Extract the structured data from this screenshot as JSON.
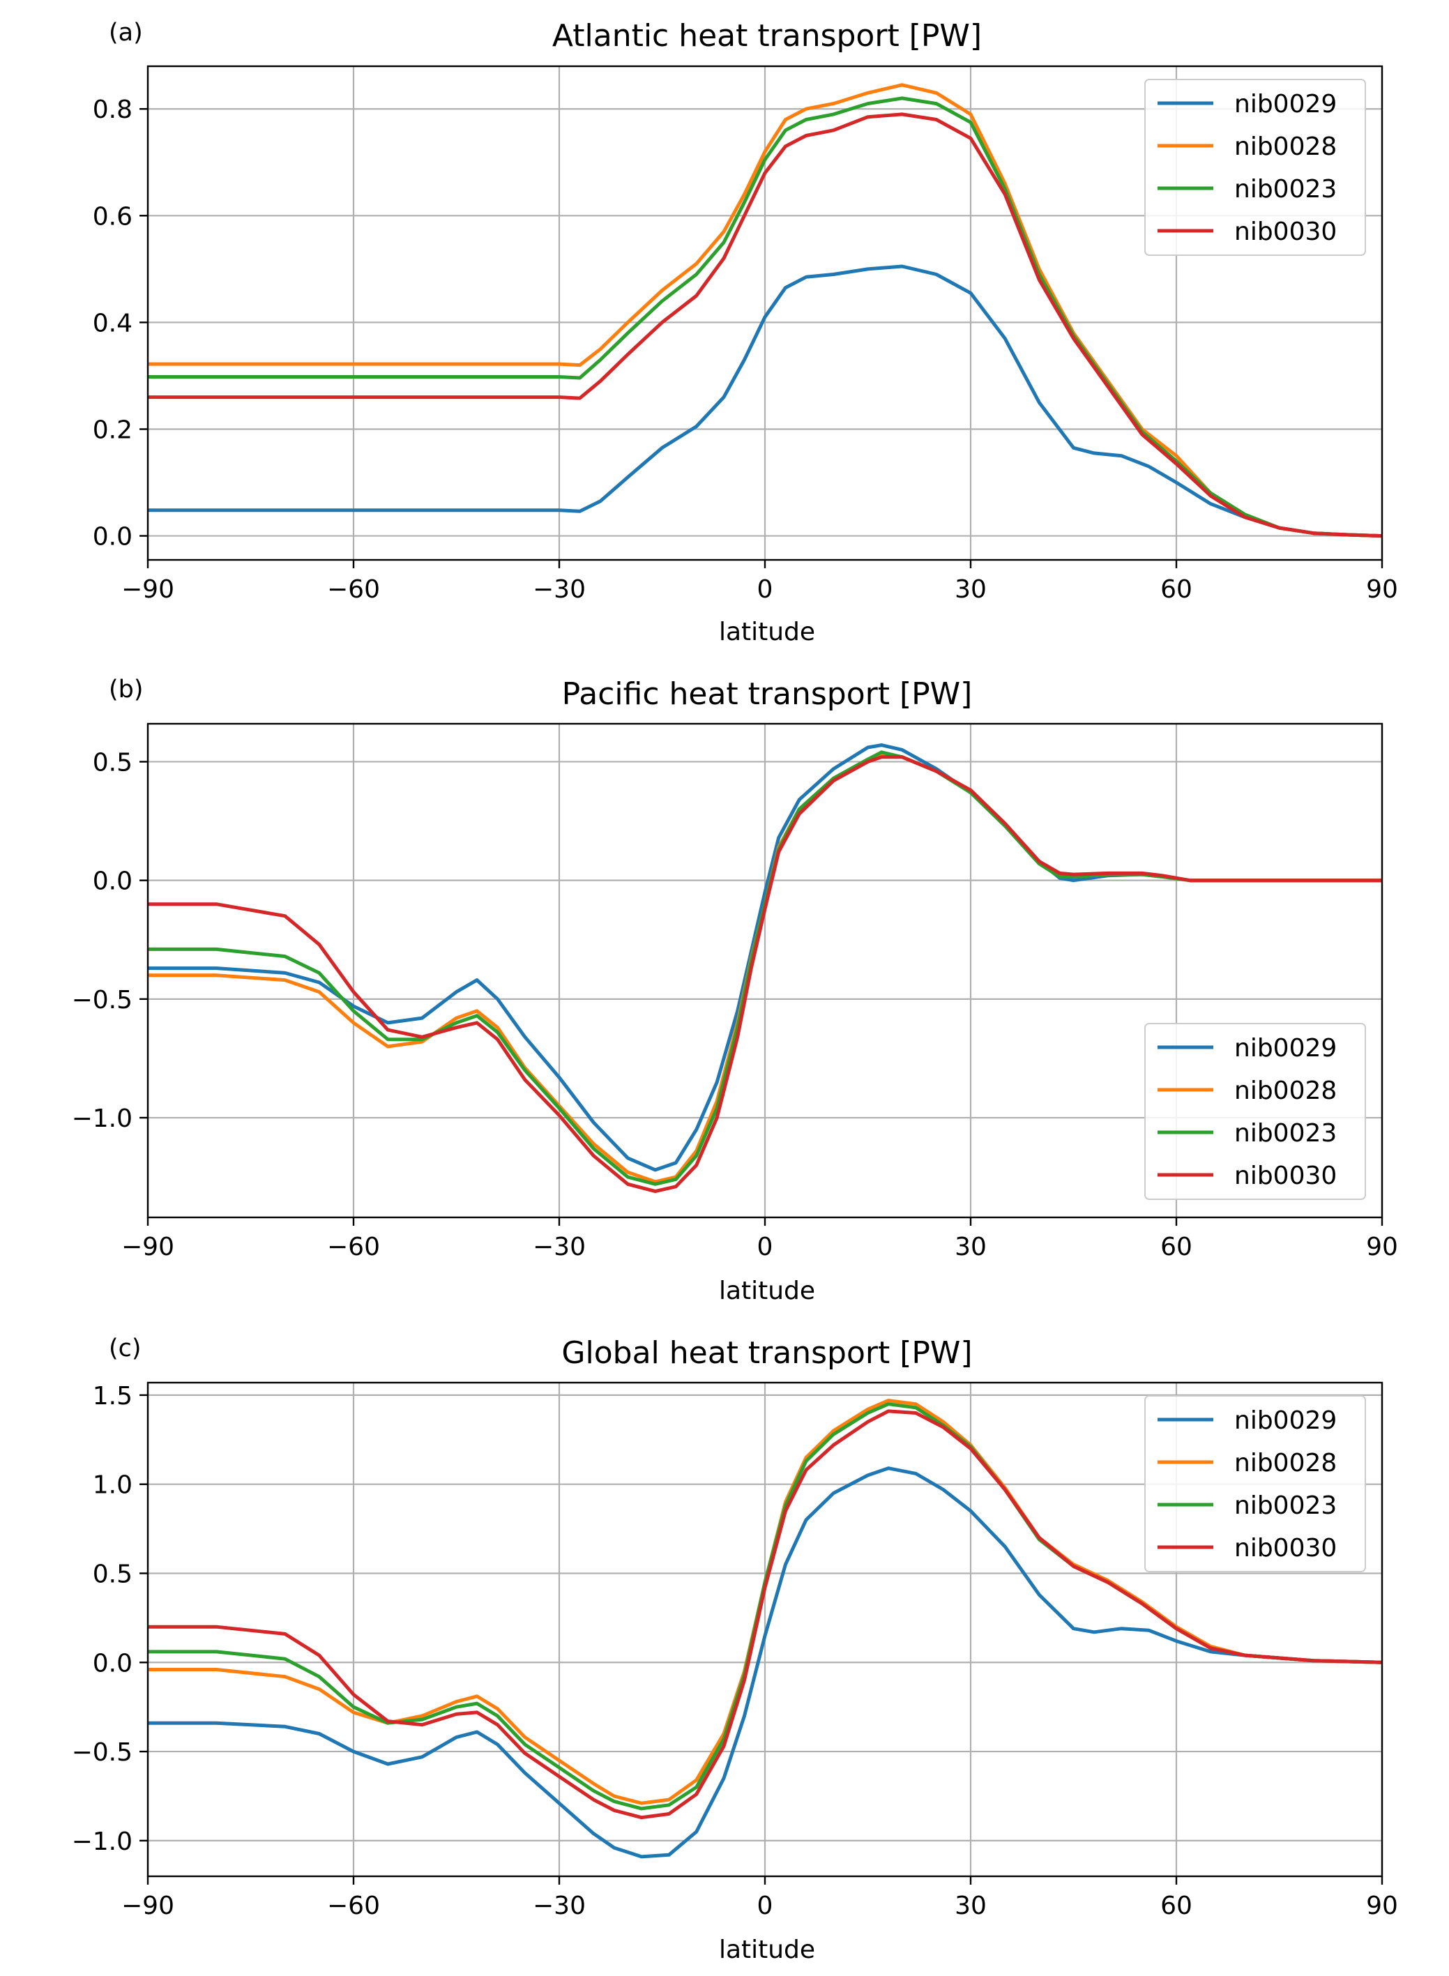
{
  "series_colors": {
    "nib0029": "#1f77b4",
    "nib0028": "#ff7f0e",
    "nib0023": "#2ca02c",
    "nib0030": "#d62728"
  },
  "chart_data": [
    {
      "type": "line",
      "panel_label": "(a)",
      "title": "Atlantic heat transport [PW]",
      "xlabel": "latitude",
      "ylabel": "",
      "xlim": [
        -90,
        90
      ],
      "ylim": [
        -0.045,
        0.88
      ],
      "xticks": [
        -90,
        -60,
        -30,
        0,
        30,
        60,
        90
      ],
      "xtick_labels": [
        "−90",
        "−60",
        "−30",
        "0",
        "30",
        "60",
        "90"
      ],
      "yticks": [
        0.0,
        0.2,
        0.4,
        0.6,
        0.8
      ],
      "ytick_labels": [
        "0.0",
        "0.2",
        "0.4",
        "0.6",
        "0.8"
      ],
      "grid": true,
      "legend_position": "top-right",
      "series": [
        {
          "name": "nib0029",
          "x": [
            -90,
            -80,
            -70,
            -60,
            -50,
            -40,
            -30,
            -27,
            -24,
            -20,
            -15,
            -10,
            -6,
            -3,
            0,
            3,
            6,
            10,
            15,
            20,
            25,
            30,
            35,
            40,
            45,
            48,
            52,
            56,
            60,
            65,
            70,
            75,
            80,
            85,
            90
          ],
          "y": [
            0.048,
            0.048,
            0.048,
            0.048,
            0.048,
            0.048,
            0.048,
            0.046,
            0.065,
            0.11,
            0.165,
            0.205,
            0.26,
            0.33,
            0.41,
            0.465,
            0.485,
            0.49,
            0.5,
            0.505,
            0.49,
            0.455,
            0.37,
            0.25,
            0.165,
            0.155,
            0.15,
            0.13,
            0.1,
            0.06,
            0.035,
            0.015,
            0.005,
            0.002,
            0.0
          ]
        },
        {
          "name": "nib0028",
          "x": [
            -90,
            -80,
            -70,
            -60,
            -50,
            -40,
            -30,
            -27,
            -24,
            -20,
            -15,
            -10,
            -6,
            -3,
            0,
            3,
            6,
            10,
            15,
            20,
            25,
            30,
            35,
            40,
            45,
            50,
            55,
            60,
            65,
            70,
            75,
            80,
            85,
            90
          ],
          "y": [
            0.322,
            0.322,
            0.322,
            0.322,
            0.322,
            0.322,
            0.322,
            0.32,
            0.35,
            0.4,
            0.46,
            0.51,
            0.57,
            0.64,
            0.72,
            0.78,
            0.8,
            0.81,
            0.83,
            0.845,
            0.83,
            0.79,
            0.66,
            0.5,
            0.38,
            0.29,
            0.2,
            0.15,
            0.08,
            0.04,
            0.015,
            0.005,
            0.002,
            0.0
          ]
        },
        {
          "name": "nib0023",
          "x": [
            -90,
            -80,
            -70,
            -60,
            -50,
            -40,
            -30,
            -27,
            -24,
            -20,
            -15,
            -10,
            -6,
            -3,
            0,
            3,
            6,
            10,
            15,
            20,
            25,
            30,
            35,
            40,
            45,
            50,
            55,
            60,
            65,
            70,
            75,
            80,
            85,
            90
          ],
          "y": [
            0.298,
            0.298,
            0.298,
            0.298,
            0.298,
            0.298,
            0.298,
            0.296,
            0.33,
            0.38,
            0.44,
            0.49,
            0.55,
            0.625,
            0.705,
            0.76,
            0.78,
            0.79,
            0.81,
            0.82,
            0.81,
            0.775,
            0.65,
            0.49,
            0.375,
            0.285,
            0.195,
            0.14,
            0.08,
            0.04,
            0.015,
            0.005,
            0.002,
            0.0
          ]
        },
        {
          "name": "nib0030",
          "x": [
            -90,
            -80,
            -70,
            -60,
            -50,
            -40,
            -30,
            -27,
            -24,
            -20,
            -15,
            -10,
            -6,
            -3,
            0,
            3,
            6,
            10,
            15,
            20,
            25,
            30,
            35,
            40,
            45,
            50,
            55,
            60,
            65,
            70,
            75,
            80,
            85,
            90
          ],
          "y": [
            0.26,
            0.26,
            0.26,
            0.26,
            0.26,
            0.26,
            0.26,
            0.258,
            0.29,
            0.34,
            0.4,
            0.45,
            0.52,
            0.6,
            0.68,
            0.73,
            0.75,
            0.76,
            0.785,
            0.79,
            0.78,
            0.745,
            0.64,
            0.48,
            0.37,
            0.28,
            0.19,
            0.135,
            0.075,
            0.035,
            0.015,
            0.005,
            0.002,
            0.0
          ]
        }
      ]
    },
    {
      "type": "line",
      "panel_label": "(b)",
      "title": "Pacific heat transport [PW]",
      "xlabel": "latitude",
      "ylabel": "",
      "xlim": [
        -90,
        90
      ],
      "ylim": [
        -1.42,
        0.66
      ],
      "xticks": [
        -90,
        -60,
        -30,
        0,
        30,
        60,
        90
      ],
      "xtick_labels": [
        "−90",
        "−60",
        "−30",
        "0",
        "30",
        "60",
        "90"
      ],
      "yticks": [
        -1.0,
        -0.5,
        0.0,
        0.5
      ],
      "ytick_labels": [
        "−1.0",
        "−0.5",
        "0.0",
        "0.5"
      ],
      "grid": true,
      "legend_position": "bottom-right",
      "series": [
        {
          "name": "nib0029",
          "x": [
            -90,
            -80,
            -70,
            -65,
            -60,
            -55,
            -50,
            -45,
            -42,
            -39,
            -35,
            -30,
            -25,
            -20,
            -16,
            -13,
            -10,
            -7,
            -4,
            -2,
            0,
            2,
            5,
            10,
            15,
            17,
            20,
            25,
            30,
            35,
            40,
            43,
            45,
            50,
            55,
            58,
            62,
            70,
            80,
            90
          ],
          "y": [
            -0.37,
            -0.37,
            -0.39,
            -0.43,
            -0.53,
            -0.6,
            -0.58,
            -0.47,
            -0.42,
            -0.5,
            -0.66,
            -0.83,
            -1.02,
            -1.17,
            -1.22,
            -1.19,
            -1.05,
            -0.85,
            -0.55,
            -0.3,
            -0.05,
            0.18,
            0.34,
            0.47,
            0.56,
            0.57,
            0.55,
            0.47,
            0.37,
            0.23,
            0.08,
            0.01,
            0.0,
            0.02,
            0.025,
            0.015,
            0.0,
            0.0,
            0.0,
            0.0
          ]
        },
        {
          "name": "nib0028",
          "x": [
            -90,
            -80,
            -70,
            -65,
            -60,
            -55,
            -50,
            -45,
            -42,
            -39,
            -35,
            -30,
            -25,
            -20,
            -16,
            -13,
            -10,
            -7,
            -4,
            -2,
            0,
            2,
            5,
            10,
            15,
            17,
            20,
            25,
            30,
            35,
            40,
            43,
            45,
            50,
            55,
            58,
            62,
            70,
            80,
            90
          ],
          "y": [
            -0.4,
            -0.4,
            -0.42,
            -0.47,
            -0.6,
            -0.7,
            -0.68,
            -0.58,
            -0.55,
            -0.62,
            -0.79,
            -0.95,
            -1.11,
            -1.23,
            -1.27,
            -1.25,
            -1.14,
            -0.93,
            -0.6,
            -0.33,
            -0.1,
            0.14,
            0.3,
            0.43,
            0.51,
            0.53,
            0.52,
            0.46,
            0.38,
            0.24,
            0.08,
            0.02,
            0.015,
            0.025,
            0.025,
            0.015,
            0.0,
            0.0,
            0.0,
            0.0
          ]
        },
        {
          "name": "nib0023",
          "x": [
            -90,
            -80,
            -70,
            -65,
            -60,
            -55,
            -50,
            -45,
            -42,
            -39,
            -35,
            -30,
            -25,
            -20,
            -16,
            -13,
            -10,
            -7,
            -4,
            -2,
            0,
            2,
            5,
            10,
            15,
            17,
            20,
            25,
            30,
            35,
            40,
            43,
            45,
            50,
            55,
            58,
            62,
            70,
            80,
            90
          ],
          "y": [
            -0.29,
            -0.29,
            -0.32,
            -0.39,
            -0.55,
            -0.67,
            -0.67,
            -0.6,
            -0.57,
            -0.64,
            -0.8,
            -0.96,
            -1.13,
            -1.25,
            -1.28,
            -1.26,
            -1.16,
            -0.96,
            -0.62,
            -0.34,
            -0.1,
            0.13,
            0.3,
            0.43,
            0.51,
            0.54,
            0.52,
            0.46,
            0.37,
            0.23,
            0.07,
            0.015,
            0.015,
            0.025,
            0.025,
            0.015,
            0.0,
            0.0,
            0.0,
            0.0
          ]
        },
        {
          "name": "nib0030",
          "x": [
            -90,
            -80,
            -70,
            -65,
            -60,
            -55,
            -50,
            -45,
            -42,
            -39,
            -35,
            -30,
            -25,
            -20,
            -16,
            -13,
            -10,
            -7,
            -4,
            -2,
            0,
            2,
            5,
            10,
            15,
            17,
            20,
            25,
            30,
            35,
            40,
            43,
            45,
            50,
            55,
            58,
            62,
            70,
            80,
            90
          ],
          "y": [
            -0.1,
            -0.1,
            -0.15,
            -0.27,
            -0.47,
            -0.63,
            -0.66,
            -0.62,
            -0.6,
            -0.67,
            -0.84,
            -0.99,
            -1.16,
            -1.28,
            -1.31,
            -1.29,
            -1.2,
            -1.0,
            -0.66,
            -0.37,
            -0.12,
            0.12,
            0.28,
            0.42,
            0.5,
            0.52,
            0.52,
            0.46,
            0.38,
            0.24,
            0.08,
            0.03,
            0.025,
            0.03,
            0.03,
            0.02,
            0.0,
            0.0,
            0.0,
            0.0
          ]
        }
      ]
    },
    {
      "type": "line",
      "panel_label": "(c)",
      "title": "Global heat transport [PW]",
      "xlabel": "latitude",
      "ylabel": "",
      "xlim": [
        -90,
        90
      ],
      "ylim": [
        -1.2,
        1.57
      ],
      "xticks": [
        -90,
        -60,
        -30,
        0,
        30,
        60,
        90
      ],
      "xtick_labels": [
        "−90",
        "−60",
        "−30",
        "0",
        "30",
        "60",
        "90"
      ],
      "yticks": [
        -1.0,
        -0.5,
        0.0,
        0.5,
        1.0,
        1.5
      ],
      "ytick_labels": [
        "−1.0",
        "−0.5",
        "0.0",
        "0.5",
        "1.0",
        "1.5"
      ],
      "grid": true,
      "legend_position": "top-right",
      "series": [
        {
          "name": "nib0029",
          "x": [
            -90,
            -80,
            -70,
            -65,
            -60,
            -55,
            -50,
            -45,
            -42,
            -39,
            -35,
            -30,
            -25,
            -22,
            -18,
            -14,
            -10,
            -6,
            -3,
            0,
            3,
            6,
            10,
            15,
            18,
            22,
            26,
            30,
            35,
            40,
            45,
            48,
            52,
            56,
            60,
            65,
            70,
            80,
            90
          ],
          "y": [
            -0.34,
            -0.34,
            -0.36,
            -0.4,
            -0.5,
            -0.57,
            -0.53,
            -0.42,
            -0.39,
            -0.46,
            -0.62,
            -0.79,
            -0.96,
            -1.04,
            -1.09,
            -1.08,
            -0.95,
            -0.65,
            -0.3,
            0.15,
            0.55,
            0.8,
            0.95,
            1.05,
            1.09,
            1.06,
            0.97,
            0.85,
            0.65,
            0.38,
            0.19,
            0.17,
            0.19,
            0.18,
            0.12,
            0.06,
            0.04,
            0.01,
            0.0
          ]
        },
        {
          "name": "nib0028",
          "x": [
            -90,
            -80,
            -70,
            -65,
            -60,
            -55,
            -50,
            -45,
            -42,
            -39,
            -35,
            -30,
            -25,
            -22,
            -18,
            -14,
            -10,
            -6,
            -3,
            0,
            3,
            6,
            10,
            15,
            18,
            22,
            26,
            30,
            35,
            40,
            45,
            50,
            55,
            60,
            65,
            70,
            80,
            90
          ],
          "y": [
            -0.04,
            -0.04,
            -0.08,
            -0.15,
            -0.28,
            -0.34,
            -0.3,
            -0.22,
            -0.19,
            -0.26,
            -0.42,
            -0.55,
            -0.68,
            -0.75,
            -0.79,
            -0.77,
            -0.66,
            -0.4,
            -0.05,
            0.45,
            0.9,
            1.15,
            1.3,
            1.42,
            1.47,
            1.45,
            1.35,
            1.22,
            0.98,
            0.7,
            0.55,
            0.46,
            0.34,
            0.2,
            0.09,
            0.04,
            0.01,
            0.0
          ]
        },
        {
          "name": "nib0023",
          "x": [
            -90,
            -80,
            -70,
            -65,
            -60,
            -55,
            -50,
            -45,
            -42,
            -39,
            -35,
            -30,
            -25,
            -22,
            -18,
            -14,
            -10,
            -6,
            -3,
            0,
            3,
            6,
            10,
            15,
            18,
            22,
            26,
            30,
            35,
            40,
            45,
            50,
            55,
            60,
            65,
            70,
            80,
            90
          ],
          "y": [
            0.06,
            0.06,
            0.02,
            -0.08,
            -0.25,
            -0.34,
            -0.32,
            -0.25,
            -0.23,
            -0.3,
            -0.46,
            -0.59,
            -0.72,
            -0.78,
            -0.82,
            -0.8,
            -0.7,
            -0.43,
            -0.07,
            0.45,
            0.88,
            1.13,
            1.28,
            1.4,
            1.45,
            1.43,
            1.33,
            1.21,
            0.97,
            0.69,
            0.54,
            0.45,
            0.33,
            0.19,
            0.08,
            0.04,
            0.01,
            0.0
          ]
        },
        {
          "name": "nib0030",
          "x": [
            -90,
            -80,
            -70,
            -65,
            -60,
            -55,
            -50,
            -45,
            -42,
            -39,
            -35,
            -30,
            -25,
            -22,
            -18,
            -14,
            -10,
            -6,
            -3,
            0,
            3,
            6,
            10,
            15,
            18,
            22,
            26,
            30,
            35,
            40,
            45,
            50,
            55,
            60,
            65,
            70,
            80,
            90
          ],
          "y": [
            0.2,
            0.2,
            0.16,
            0.04,
            -0.18,
            -0.33,
            -0.35,
            -0.29,
            -0.28,
            -0.35,
            -0.51,
            -0.64,
            -0.77,
            -0.83,
            -0.87,
            -0.85,
            -0.74,
            -0.47,
            -0.1,
            0.42,
            0.85,
            1.08,
            1.22,
            1.35,
            1.41,
            1.4,
            1.32,
            1.2,
            0.97,
            0.7,
            0.54,
            0.45,
            0.33,
            0.19,
            0.08,
            0.04,
            0.01,
            0.0
          ]
        }
      ]
    }
  ]
}
